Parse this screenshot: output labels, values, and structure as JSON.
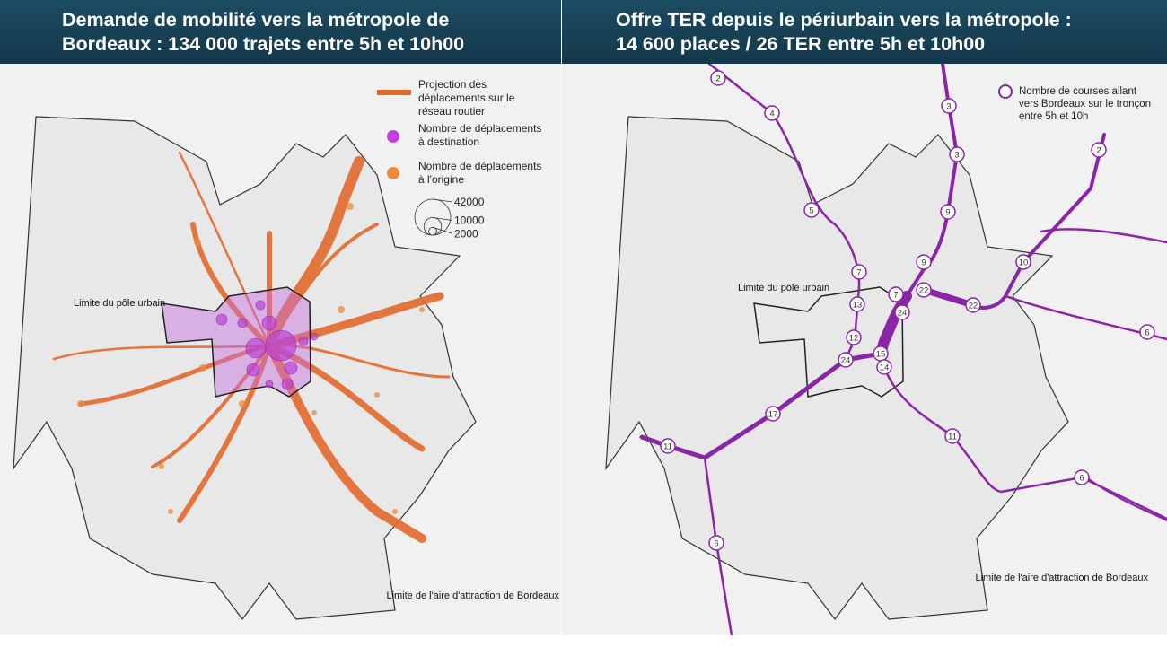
{
  "left": {
    "title": [
      "Demande de mobilité vers la métropole de",
      "Bordeaux : 134 000 trajets entre 5h et 10h00"
    ],
    "legend": {
      "road": [
        "Projection des",
        "déplacements sur le",
        "réseau routier"
      ],
      "destination": [
        "Nombre de déplacements",
        "à destination"
      ],
      "origin": [
        "Nombre de déplacements",
        "à l'origine"
      ],
      "sizes": [
        42000,
        10000,
        2000
      ]
    },
    "urban_pole_label": "Limite du pôle urbain",
    "attraction_area_label": "Limite de l'aire d'attraction de Bordeaux"
  },
  "right": {
    "title": [
      "Offre TER depuis le périurbain vers la métropole :",
      "14 600 places / 26 TER entre 5h et 10h00"
    ],
    "legend": [
      "Nombre de courses allant",
      "vers Bordeaux sur le tronçon",
      "entre 5h et 10h"
    ],
    "urban_pole_label": "Limite du pôle urbain",
    "attraction_area_label": "Limite de l'aire d'attraction de Bordeaux",
    "course_counts": [
      2,
      4,
      3,
      3,
      9,
      5,
      2,
      10,
      9,
      7,
      22,
      7,
      22,
      13,
      24,
      6,
      12,
      15,
      14,
      24,
      17,
      11,
      11,
      6,
      6
    ]
  }
}
